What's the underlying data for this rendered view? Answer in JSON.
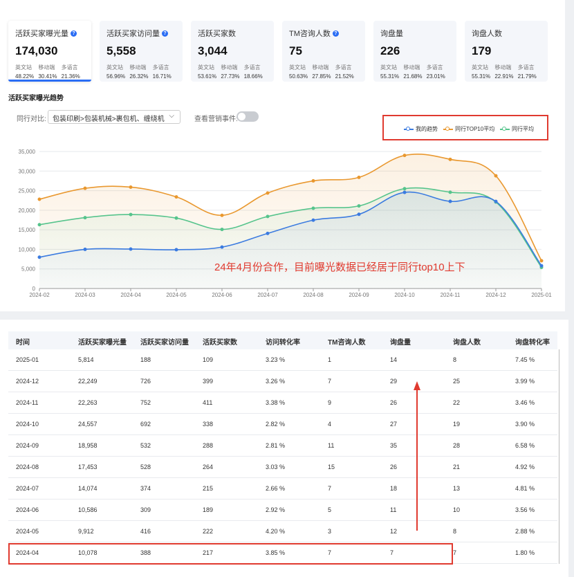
{
  "metrics": [
    {
      "title": "活跃买家曝光量",
      "info": true,
      "value": "174,030",
      "subs": [
        {
          "label": "英文站",
          "value": "48.22%"
        },
        {
          "label": "移动端",
          "value": "30.41%"
        },
        {
          "label": "多语言",
          "value": "21.36%"
        }
      ]
    },
    {
      "title": "活跃买家访问量",
      "info": true,
      "value": "5,558",
      "subs": [
        {
          "label": "英文站",
          "value": "56.96%"
        },
        {
          "label": "移动端",
          "value": "26.32%"
        },
        {
          "label": "多语言",
          "value": "16.71%"
        }
      ]
    },
    {
      "title": "活跃买家数",
      "info": false,
      "value": "3,044",
      "subs": [
        {
          "label": "英文站",
          "value": "53.61%"
        },
        {
          "label": "移动端",
          "value": "27.73%"
        },
        {
          "label": "多语言",
          "value": "18.66%"
        }
      ]
    },
    {
      "title": "TM咨询人数",
      "info": true,
      "value": "75",
      "subs": [
        {
          "label": "英文站",
          "value": "50.63%"
        },
        {
          "label": "移动端",
          "value": "27.85%"
        },
        {
          "label": "多语言",
          "value": "21.52%"
        }
      ]
    },
    {
      "title": "询盘量",
      "info": false,
      "value": "226",
      "subs": [
        {
          "label": "英文站",
          "value": "55.31%"
        },
        {
          "label": "移动端",
          "value": "21.68%"
        },
        {
          "label": "多语言",
          "value": "23.01%"
        }
      ]
    },
    {
      "title": "询盘人数",
      "info": false,
      "value": "179",
      "subs": [
        {
          "label": "英文站",
          "value": "55.31%"
        },
        {
          "label": "移动端",
          "value": "22.91%"
        },
        {
          "label": "多语言",
          "value": "21.79%"
        }
      ]
    }
  ],
  "section_title": "活跃买家曝光趋势",
  "controls": {
    "peer_label": "同行对比:",
    "peer_select_value": "包装印刷>包装机械>裹包机、缠绕机",
    "event_label": "查看营销事件:",
    "event_toggle_on": false
  },
  "annotation": "24年4月份合作，目前曝光数据已经居于同行top10上下",
  "colors": {
    "mine": "#3b7be0",
    "top10": "#e9982f",
    "peer": "#56c48c",
    "accent": "#2a6df4",
    "highlight": "#e03a2f"
  },
  "chart_data": {
    "type": "area",
    "x": [
      "2024-02",
      "2024-03",
      "2024-04",
      "2024-05",
      "2024-06",
      "2024-07",
      "2024-08",
      "2024-09",
      "2024-10",
      "2024-11",
      "2024-12",
      "2025-01"
    ],
    "ylim": [
      0,
      35000
    ],
    "yticks": [
      "0",
      "5,000",
      "10,000",
      "15,000",
      "20,000",
      "25,000",
      "30,000",
      "35,000"
    ],
    "grid": true,
    "legend_position": "top-right",
    "series": [
      {
        "name": "我的趋势",
        "color": "#3b7be0",
        "values": [
          8000,
          10000,
          10078,
          9912,
          10586,
          14074,
          17453,
          18958,
          24557,
          22263,
          22249,
          5814
        ]
      },
      {
        "name": "同行TOP10平均",
        "color": "#e9982f",
        "values": [
          22800,
          25600,
          25900,
          23400,
          18700,
          24400,
          27500,
          28400,
          34000,
          33000,
          28800,
          7100
        ]
      },
      {
        "name": "同行平均",
        "color": "#56c48c",
        "values": [
          16300,
          18100,
          18900,
          18000,
          15100,
          18400,
          20500,
          21100,
          25500,
          24600,
          22100,
          5400
        ]
      }
    ]
  },
  "table": {
    "headers": [
      "时间",
      "活跃买家曝光量",
      "活跃买家访问量",
      "活跃买家数",
      "访问转化率",
      "TM咨询人数",
      "询盘量",
      "询盘人数",
      "询盘转化率"
    ],
    "rows": [
      [
        "2025-01",
        "5,814",
        "188",
        "109",
        "3.23 %",
        "1",
        "14",
        "8",
        "7.45 %"
      ],
      [
        "2024-12",
        "22,249",
        "726",
        "399",
        "3.26 %",
        "7",
        "29",
        "25",
        "3.99 %"
      ],
      [
        "2024-11",
        "22,263",
        "752",
        "411",
        "3.38 %",
        "9",
        "26",
        "22",
        "3.46 %"
      ],
      [
        "2024-10",
        "24,557",
        "692",
        "338",
        "2.82 %",
        "4",
        "27",
        "19",
        "3.90 %"
      ],
      [
        "2024-09",
        "18,958",
        "532",
        "288",
        "2.81 %",
        "11",
        "35",
        "28",
        "6.58 %"
      ],
      [
        "2024-08",
        "17,453",
        "528",
        "264",
        "3.03 %",
        "15",
        "26",
        "21",
        "4.92 %"
      ],
      [
        "2024-07",
        "14,074",
        "374",
        "215",
        "2.66 %",
        "7",
        "18",
        "13",
        "4.81 %"
      ],
      [
        "2024-06",
        "10,586",
        "309",
        "189",
        "2.92 %",
        "5",
        "11",
        "10",
        "3.56 %"
      ],
      [
        "2024-05",
        "9,912",
        "416",
        "222",
        "4.20 %",
        "3",
        "12",
        "8",
        "2.88 %"
      ],
      [
        "2024-04",
        "10,078",
        "388",
        "217",
        "3.85 %",
        "7",
        "7",
        "7",
        "1.80 %"
      ]
    ]
  }
}
